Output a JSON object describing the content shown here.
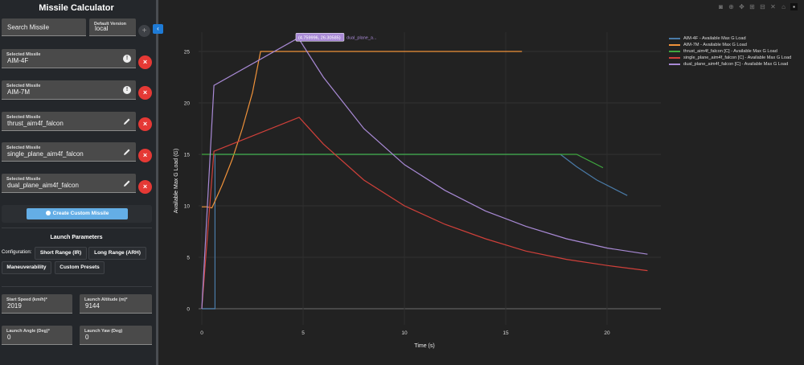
{
  "sidebar": {
    "title": "Missile Calculator",
    "search": {
      "label": "Search Missile"
    },
    "version": {
      "label": "Default Version",
      "value": "local"
    },
    "add_icon": "+",
    "collapse_icon": "‹",
    "selected": [
      {
        "label": "Selected Missile",
        "value": "AIM-4F",
        "icon": "info-icon"
      },
      {
        "label": "Selected Missile",
        "value": "AIM-7M",
        "icon": "info-icon"
      },
      {
        "label": "Selected Missile",
        "value": "thrust_aim4f_falcon",
        "icon": "edit-icon"
      },
      {
        "label": "Selected Missile",
        "value": "single_plane_aim4f_falcon",
        "icon": "edit-icon"
      },
      {
        "label": "Selected Missile",
        "value": "dual_plane_aim4f_falcon",
        "icon": "edit-icon"
      }
    ],
    "remove_icon": "×",
    "create_button": "Create Custom Missile",
    "launch": {
      "title": "Launch Parameters",
      "config_label": "Configuration:",
      "presets": [
        "Short Range (IR)",
        "Long Range (ARH)",
        "Maneuverability",
        "Custom Presets"
      ]
    },
    "params": [
      {
        "label": "Start Speed (km/h)*",
        "value": "2019"
      },
      {
        "label": "Launch Altitude (m)*",
        "value": "9144"
      },
      {
        "label": "Launch Angle (Deg)*",
        "value": "0"
      },
      {
        "label": "Launch Yaw (Deg)",
        "value": "0"
      }
    ]
  },
  "modebar": [
    "camera-icon",
    "zoom-icon",
    "pan-icon",
    "zoom-in-icon",
    "zoom-out-icon",
    "autoscale-icon",
    "reset-axes-icon",
    "plotly-logo-icon"
  ],
  "chart_data": {
    "type": "line",
    "title": "",
    "xlabel": "Time (s)",
    "ylabel": "Available Max G Load (G)",
    "xlim": [
      -0.3,
      22.2
    ],
    "ylim": [
      -1.5,
      27
    ],
    "xticks": [
      0,
      5,
      10,
      15,
      20
    ],
    "yticks": [
      0,
      5,
      10,
      15,
      20,
      25
    ],
    "grid": true,
    "legend_position": "top-right",
    "hover_label": {
      "text": "(4.759996, 26.30585)",
      "series": "dual_plane_a..."
    },
    "series": [
      {
        "name": "AIM-4F - Available Max G Load",
        "color": "#4a7ba8",
        "points": [
          [
            0,
            0
          ],
          [
            0.65,
            0
          ],
          [
            0.65,
            15
          ],
          [
            17.7,
            15
          ],
          [
            18.5,
            13.8
          ],
          [
            19.5,
            12.5
          ],
          [
            20.5,
            11.5
          ],
          [
            21.0,
            11.0
          ]
        ]
      },
      {
        "name": "AIM-7M - Available Max G Load",
        "color": "#f0923a",
        "points": [
          [
            0,
            9.9
          ],
          [
            0.25,
            9.9
          ],
          [
            0.5,
            9.8
          ],
          [
            1.0,
            12
          ],
          [
            1.5,
            14.5
          ],
          [
            2.0,
            17.5
          ],
          [
            2.5,
            21
          ],
          [
            2.9,
            25
          ],
          [
            15.8,
            25
          ]
        ]
      },
      {
        "name": "thrust_aim4f_falcon [C] - Available Max G Load",
        "color": "#3fa83f",
        "points": [
          [
            0,
            15
          ],
          [
            0,
            15
          ],
          [
            18.5,
            15
          ],
          [
            19.8,
            13.7
          ]
        ]
      },
      {
        "name": "single_plane_aim4f_falcon [C] - Available Max G Load",
        "color": "#d0403a",
        "points": [
          [
            0,
            0
          ],
          [
            0.6,
            15.3
          ],
          [
            4.8,
            18.6
          ],
          [
            6,
            16
          ],
          [
            8,
            12.5
          ],
          [
            10,
            10
          ],
          [
            12,
            8.2
          ],
          [
            14,
            6.8
          ],
          [
            16,
            5.6
          ],
          [
            18,
            4.8
          ],
          [
            20,
            4.2
          ],
          [
            22,
            3.7
          ]
        ]
      },
      {
        "name": "dual_plane_aim4f_falcon [C] - Available Max G Load",
        "color": "#a98ad6",
        "points": [
          [
            0,
            0
          ],
          [
            0.6,
            21.7
          ],
          [
            4.76,
            26.31
          ],
          [
            6,
            22.5
          ],
          [
            8,
            17.5
          ],
          [
            10,
            14
          ],
          [
            12,
            11.5
          ],
          [
            14,
            9.5
          ],
          [
            16,
            8
          ],
          [
            18,
            6.8
          ],
          [
            20,
            5.9
          ],
          [
            22,
            5.3
          ]
        ]
      }
    ]
  }
}
